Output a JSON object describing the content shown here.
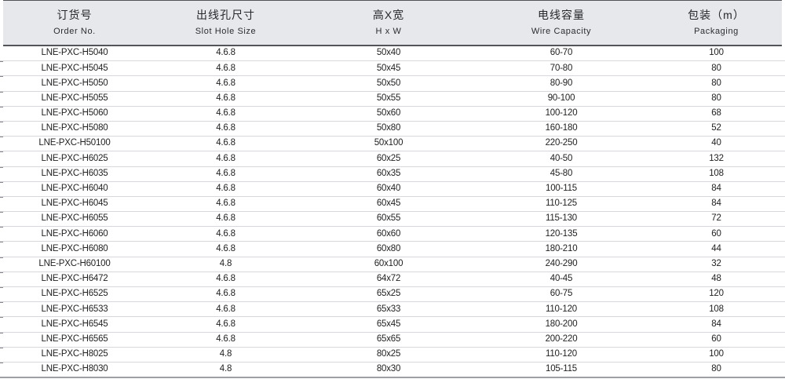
{
  "colors": {
    "header_bg": "#e7e8eb",
    "header_rule": "#53545a",
    "row_rule": "#d8d8dc",
    "bottom_rule": "#9ea0a4",
    "text": "#222222"
  },
  "table": {
    "column_keys": [
      "order-no",
      "slot-hole-size",
      "h-x-w",
      "wire-capacity",
      "packaging"
    ],
    "columns": [
      {
        "zh": "订货号",
        "en": "Order No."
      },
      {
        "zh": "出线孔尺寸",
        "en": "Slot Hole Size"
      },
      {
        "zh": "高X宽",
        "en": "H x W"
      },
      {
        "zh": "电线容量",
        "en": "Wire Capacity"
      },
      {
        "zh": "包装（m）",
        "en": "Packaging"
      }
    ],
    "rows": [
      [
        "LNE-PXC-H5040",
        "4.6.8",
        "50x40",
        "60-70",
        "100"
      ],
      [
        "LNE-PXC-H5045",
        "4.6.8",
        "50x45",
        "70-80",
        "80"
      ],
      [
        "LNE-PXC-H5050",
        "4.6.8",
        "50x50",
        "80-90",
        "80"
      ],
      [
        "LNE-PXC-H5055",
        "4.6.8",
        "50x55",
        "90-100",
        "80"
      ],
      [
        "LNE-PXC-H5060",
        "4.6.8",
        "50x60",
        "100-120",
        "68"
      ],
      [
        "LNE-PXC-H5080",
        "4.6.8",
        "50x80",
        "160-180",
        "52"
      ],
      [
        "LNE-PXC-H50100",
        "4.6.8",
        "50x100",
        "220-250",
        "40"
      ],
      [
        "LNE-PXC-H6025",
        "4.6.8",
        "60x25",
        "40-50",
        "132"
      ],
      [
        "LNE-PXC-H6035",
        "4.6.8",
        "60x35",
        "45-80",
        "108"
      ],
      [
        "LNE-PXC-H6040",
        "4.6.8",
        "60x40",
        "100-115",
        "84"
      ],
      [
        "LNE-PXC-H6045",
        "4.6.8",
        "60x45",
        "110-125",
        "84"
      ],
      [
        "LNE-PXC-H6055",
        "4.6.8",
        "60x55",
        "115-130",
        "72"
      ],
      [
        "LNE-PXC-H6060",
        "4.6.8",
        "60x60",
        "120-135",
        "60"
      ],
      [
        "LNE-PXC-H6080",
        "4.6.8",
        "60x80",
        "180-210",
        "44"
      ],
      [
        "LNE-PXC-H60100",
        "4.8",
        "60x100",
        "240-290",
        "32"
      ],
      [
        "LNE-PXC-H6472",
        "4.6.8",
        "64x72",
        "40-45",
        "48"
      ],
      [
        "LNE-PXC-H6525",
        "4.6.8",
        "65x25",
        "60-75",
        "120"
      ],
      [
        "LNE-PXC-H6533",
        "4.6.8",
        "65x33",
        "110-120",
        "108"
      ],
      [
        "LNE-PXC-H6545",
        "4.6.8",
        "65x45",
        "180-200",
        "84"
      ],
      [
        "LNE-PXC-H6565",
        "4.6.8",
        "65x65",
        "200-220",
        "60"
      ],
      [
        "LNE-PXC-H8025",
        "4.8",
        "80x25",
        "110-120",
        "100"
      ],
      [
        "LNE-PXC-H8030",
        "4.8",
        "80x30",
        "105-115",
        "80"
      ]
    ]
  }
}
